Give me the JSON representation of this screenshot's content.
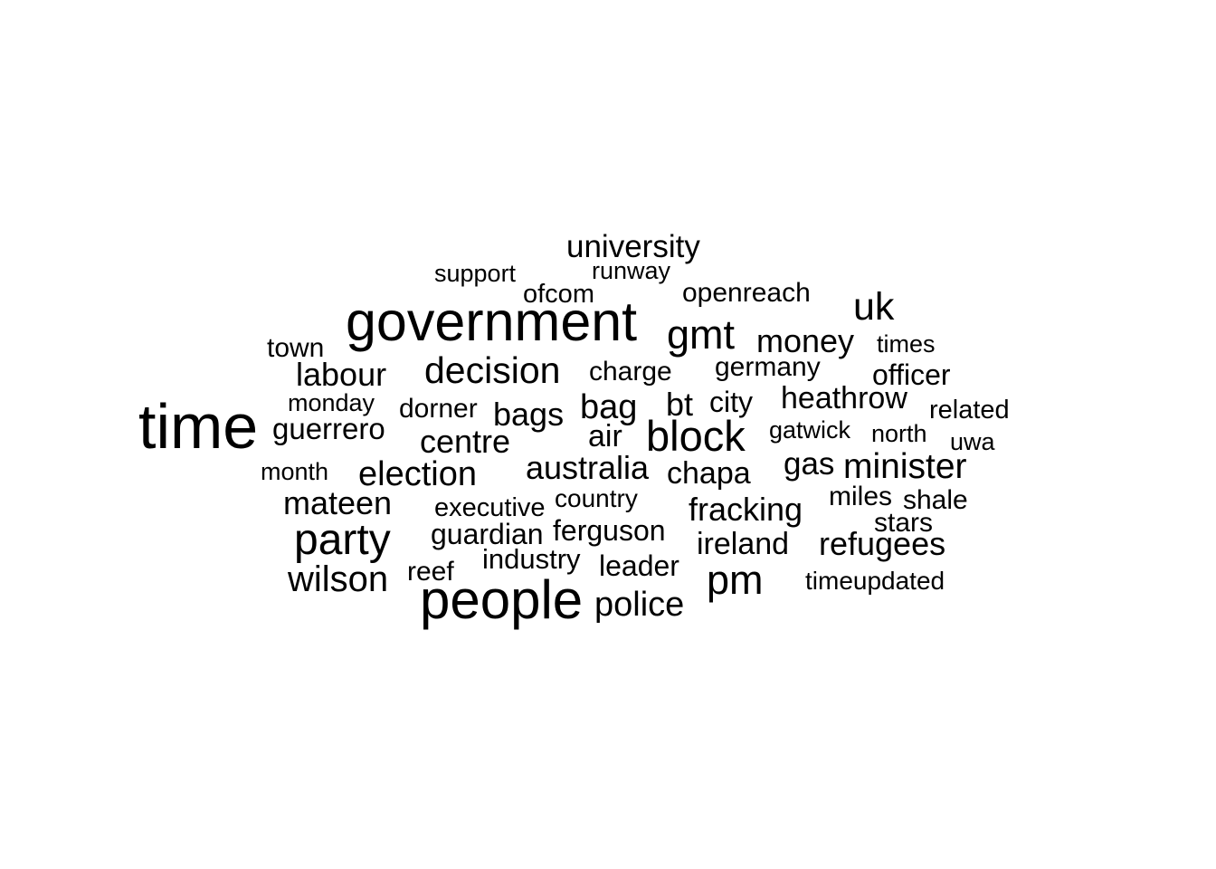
{
  "cloud": {
    "words": [
      {
        "text": "university"
      },
      {
        "text": "support"
      },
      {
        "text": "runway"
      },
      {
        "text": "ofcom"
      },
      {
        "text": "openreach"
      },
      {
        "text": "uk"
      },
      {
        "text": "government"
      },
      {
        "text": "gmt"
      },
      {
        "text": "money"
      },
      {
        "text": "times"
      },
      {
        "text": "town"
      },
      {
        "text": "labour"
      },
      {
        "text": "decision"
      },
      {
        "text": "charge"
      },
      {
        "text": "germany"
      },
      {
        "text": "officer"
      },
      {
        "text": "monday"
      },
      {
        "text": "dorner"
      },
      {
        "text": "bag"
      },
      {
        "text": "bt"
      },
      {
        "text": "city"
      },
      {
        "text": "heathrow"
      },
      {
        "text": "related"
      },
      {
        "text": "time"
      },
      {
        "text": "bags"
      },
      {
        "text": "guerrero"
      },
      {
        "text": "gatwick"
      },
      {
        "text": "north"
      },
      {
        "text": "air"
      },
      {
        "text": "block"
      },
      {
        "text": "centre"
      },
      {
        "text": "uwa"
      },
      {
        "text": "month"
      },
      {
        "text": "election"
      },
      {
        "text": "australia"
      },
      {
        "text": "chapa"
      },
      {
        "text": "gas"
      },
      {
        "text": "minister"
      },
      {
        "text": "mateen"
      },
      {
        "text": "executive"
      },
      {
        "text": "country"
      },
      {
        "text": "miles"
      },
      {
        "text": "shale"
      },
      {
        "text": "fracking"
      },
      {
        "text": "stars"
      },
      {
        "text": "party"
      },
      {
        "text": "guardian"
      },
      {
        "text": "ferguson"
      },
      {
        "text": "ireland"
      },
      {
        "text": "refugees"
      },
      {
        "text": "industry"
      },
      {
        "text": "reef"
      },
      {
        "text": "leader"
      },
      {
        "text": "wilson"
      },
      {
        "text": "pm"
      },
      {
        "text": "timeupdated"
      },
      {
        "text": "people"
      },
      {
        "text": "police"
      }
    ]
  }
}
